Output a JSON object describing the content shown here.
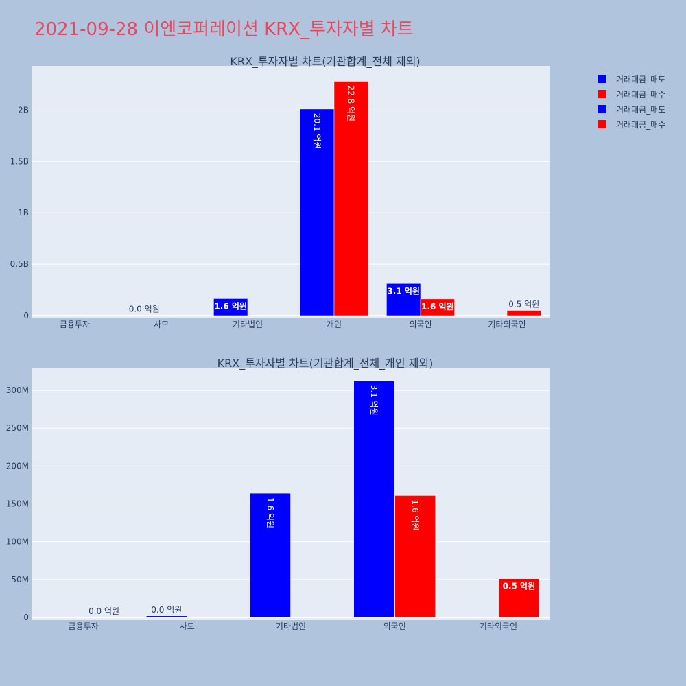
{
  "page_title": "2021-09-28 이엔코퍼레이션 KRX_투자자별 차트",
  "legend": [
    {
      "label": "거래대금_매도",
      "color": "#0000ff"
    },
    {
      "label": "거래대금_매수",
      "color": "#ff0000"
    },
    {
      "label": "거래대금_매도",
      "color": "#0000ff"
    },
    {
      "label": "거래대금_매수",
      "color": "#ff0000"
    }
  ],
  "chart_data": [
    {
      "type": "bar",
      "title": "KRX_투자자별 차트(기관합계_전체 제외)",
      "categories": [
        "금융투자",
        "사모",
        "기타법인",
        "개인",
        "외국인",
        "기타외국인"
      ],
      "ylim": [
        0,
        2430000000
      ],
      "yticks": [
        {
          "value": 0,
          "label": "0"
        },
        {
          "value": 500000000,
          "label": "0.5B"
        },
        {
          "value": 1000000000,
          "label": "1B"
        },
        {
          "value": 1500000000,
          "label": "1.5B"
        },
        {
          "value": 2000000000,
          "label": "2B"
        }
      ],
      "grid": true,
      "series": [
        {
          "name": "거래대금_매도",
          "color": "#0000ff",
          "values": [
            0,
            2000000,
            164000000,
            2010000000,
            312000000,
            0
          ],
          "labels": [
            "",
            "0.0 억원",
            "1.6 억원",
            "20.1 억원",
            "3.1 억원",
            ""
          ]
        },
        {
          "name": "거래대금_매수",
          "color": "#ff0000",
          "values": [
            0,
            0,
            0,
            2280000000,
            161000000,
            50000000
          ],
          "labels": [
            "",
            "",
            "",
            "22.8 억원",
            "1.6 억원",
            "0.5 억원"
          ]
        }
      ]
    },
    {
      "type": "bar",
      "title": "KRX_투자자별 차트(기관합계_전체_개인 제외)",
      "categories": [
        "금융투자",
        "사모",
        "기타법인",
        "외국인",
        "기타외국인"
      ],
      "ylim": [
        0,
        330000000
      ],
      "yticks": [
        {
          "value": 0,
          "label": "0"
        },
        {
          "value": 50000000,
          "label": "50M"
        },
        {
          "value": 100000000,
          "label": "100M"
        },
        {
          "value": 150000000,
          "label": "150M"
        },
        {
          "value": 200000000,
          "label": "200M"
        },
        {
          "value": 250000000,
          "label": "250M"
        },
        {
          "value": 300000000,
          "label": "300M"
        }
      ],
      "grid": true,
      "series": [
        {
          "name": "거래대금_매도",
          "color": "#0000ff",
          "values": [
            0,
            2000000,
            164000000,
            313000000,
            0
          ],
          "labels": [
            "",
            "0.0 억원",
            "1.6 억원",
            "3.1 억원",
            ""
          ]
        },
        {
          "name": "거래대금_매수",
          "color": "#ff0000",
          "values": [
            0,
            0,
            0,
            161000000,
            51000000
          ],
          "labels": [
            "0.0 억원",
            "",
            "",
            "1.6 억원",
            "0.5 억원"
          ]
        }
      ]
    }
  ]
}
